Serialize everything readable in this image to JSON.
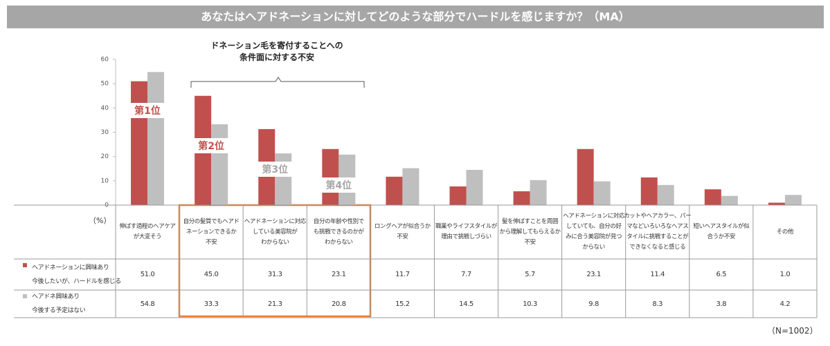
{
  "chart_data": {
    "type": "bar",
    "title": "あなたはヘアドネーションに対してどのような部分でハードルを感じますか？（MA）",
    "annotation": "ドネーション毛を寄付することへの\n条件面に対する不安",
    "rank_labels": [
      "第1位",
      "第2位",
      "第3位",
      "第4位"
    ],
    "y_unit": "（%）",
    "note": "（N=1002）",
    "categories": [
      "伸ばす過程のヘアケア\nが大変そう",
      "自分の髪質でもヘアド\nネーションできるか\n不安",
      "ヘアドネーションに対応\nしている美容院が\nわからない",
      "自分の年齢や性別で\nも挑戦できるのかが\nわからない",
      "ロングヘアが似合うか\n不安",
      "職業やライフスタイルが\n理由で挑戦しづらい",
      "髪を伸ばすことを周囲\nから理解してもらえるか\n不安",
      "ヘアドネーションに対応\nしていても、自分の好\nみに合う美容院が見つ\nからない",
      "カットやヘアカラー、パー\nマなどいろいろなヘアス\nタイルに挑戦することが\nできなくなると感じる",
      "短いヘアスタイルが似\n合うか不安",
      "その他"
    ],
    "series": [
      {
        "name": "ヘアドネーションに興味あり\n今後したいが、ハードルを感じる",
        "color": "#c0504d",
        "values": [
          51.0,
          45.0,
          31.3,
          23.1,
          11.7,
          7.7,
          5.7,
          23.1,
          11.4,
          6.5,
          1.0
        ],
        "value_labels": [
          "51.0",
          "45.0",
          "31.3",
          "23.1",
          "11.7",
          "7.7",
          "5.7",
          "23.1",
          "11.4",
          "6.5",
          "1.0"
        ]
      },
      {
        "name": "ヘアドネ興味あり\n今後する予定はない",
        "color": "#bfbfbf",
        "values": [
          54.8,
          33.3,
          21.3,
          20.8,
          15.2,
          14.5,
          10.3,
          9.8,
          8.3,
          3.8,
          4.2
        ],
        "value_labels": [
          "54.8",
          "33.3",
          "21.3",
          "20.8",
          "15.2",
          "14.5",
          "10.3",
          "9.8",
          "8.3",
          "3.8",
          "4.2"
        ]
      }
    ],
    "ylim": [
      0,
      60
    ],
    "yticks": [
      0,
      10,
      20,
      30,
      40,
      50,
      60
    ]
  }
}
